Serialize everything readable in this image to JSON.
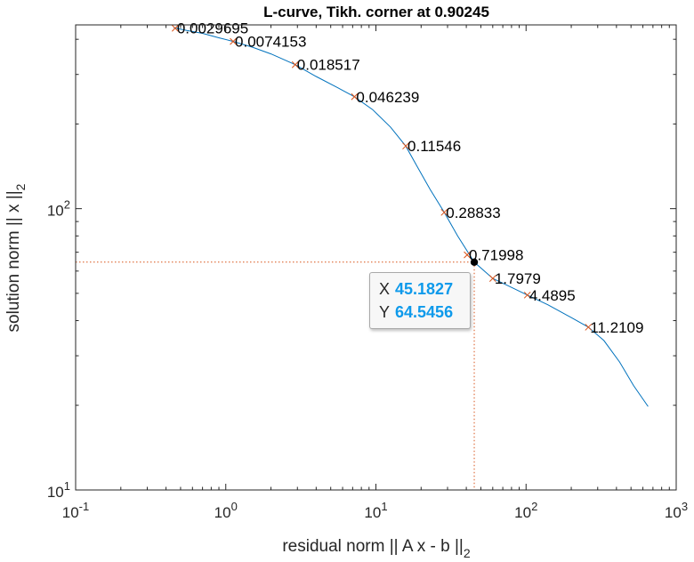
{
  "chart_data": {
    "type": "line",
    "title": "L-curve, Tikh. corner at 0.90245",
    "xlabel": "residual norm || A x - b ||",
    "xlabel_sub": "2",
    "ylabel": "solution norm || x ||",
    "ylabel_sub": "2",
    "x_scale": "log",
    "y_scale": "log",
    "xlim": [
      0.1,
      1000
    ],
    "ylim": [
      10,
      450
    ],
    "x_ticks": [
      {
        "value": 0.1,
        "base": "10",
        "exp": "-1"
      },
      {
        "value": 1,
        "base": "10",
        "exp": "0"
      },
      {
        "value": 10,
        "base": "10",
        "exp": "1"
      },
      {
        "value": 100,
        "base": "10",
        "exp": "2"
      },
      {
        "value": 1000,
        "base": "10",
        "exp": "3"
      }
    ],
    "y_ticks": [
      {
        "value": 10,
        "base": "10",
        "exp": "1"
      },
      {
        "value": 100,
        "base": "10",
        "exp": "2"
      }
    ],
    "grid": false,
    "series": [
      {
        "color": "#0072bd",
        "x": [
          0.45,
          0.55,
          0.7,
          0.9,
          1.12,
          1.5,
          2.0,
          2.9,
          4.0,
          5.5,
          7.2,
          9.5,
          12.5,
          15.8,
          19.0,
          23.0,
          28.5,
          35.0,
          45.18,
          60.0,
          80.0,
          102.0,
          140.0,
          200.0,
          260.0,
          330.0,
          420.0,
          520.0,
          650.0
        ],
        "y": [
          440,
          430,
          420,
          405,
          393,
          375,
          355,
          325,
          295,
          270,
          250,
          225,
          195,
          167,
          140,
          117,
          97,
          80,
          64.55,
          56.5,
          52.5,
          49.3,
          45.5,
          41.0,
          37.9,
          34.0,
          28.5,
          23.5,
          19.8
        ]
      }
    ],
    "markers": {
      "color": "#d95319",
      "points": [
        {
          "x": 0.46,
          "y": 438,
          "label": "0.0029695"
        },
        {
          "x": 1.12,
          "y": 393,
          "label": "0.0074153"
        },
        {
          "x": 2.9,
          "y": 325,
          "label": "0.018517"
        },
        {
          "x": 7.2,
          "y": 250,
          "label": "0.046239"
        },
        {
          "x": 15.8,
          "y": 167,
          "label": "0.11546"
        },
        {
          "x": 28.5,
          "y": 97,
          "label": "0.28833"
        },
        {
          "x": 40.5,
          "y": 68.5,
          "label": "0.71998"
        },
        {
          "x": 60.0,
          "y": 56.5,
          "label": "1.7979"
        },
        {
          "x": 102.0,
          "y": 49.3,
          "label": "4.4895"
        },
        {
          "x": 260.0,
          "y": 37.9,
          "label": "11.2109"
        }
      ]
    },
    "corner": {
      "x": 45.1827,
      "y": 64.5456,
      "line_color": "#d95319",
      "point_color": "#000000"
    },
    "datatip": {
      "x_label": "X",
      "x_value": "45.1827",
      "y_label": "Y",
      "y_value": "64.5456",
      "value_color": "#0e9aeb"
    }
  }
}
